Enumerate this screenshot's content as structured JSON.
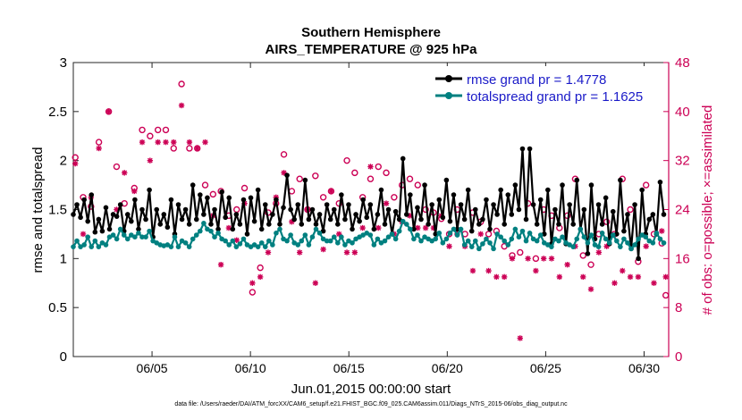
{
  "chart_data": {
    "type": "line",
    "title": "Southern Hemisphere",
    "subtitle": "AIRS_TEMPERATURE @ 925 hPa",
    "xlabel": "Jun.01,2015 00:00:00 start",
    "ylabel": "rmse and totalspread",
    "ylabel_right": "# of obs: o=possible; ×=assimilated",
    "xlim": [
      1,
      31.25
    ],
    "ylim": [
      0,
      3
    ],
    "ylim_right": [
      0,
      48
    ],
    "x_ticks": [
      5,
      10,
      15,
      20,
      25,
      30
    ],
    "x_tick_labels": [
      "06/05",
      "06/10",
      "06/15",
      "06/20",
      "06/25",
      "06/30"
    ],
    "y_ticks": [
      "0",
      "0.5",
      "1",
      "1.5",
      "2",
      "2.5",
      "3"
    ],
    "y_ticks_right": [
      "0",
      "8",
      "16",
      "24",
      "32",
      "40",
      "48"
    ],
    "legend": [
      "rmse grand pr = 1.4778",
      "totalspread grand pr = 1.1625"
    ],
    "legend_position": "top-right",
    "series": [
      {
        "name": "rmse",
        "color": "#000000",
        "axis": "left",
        "values": [
          1.45,
          1.55,
          1.42,
          1.6,
          1.38,
          1.65,
          1.27,
          1.4,
          1.28,
          1.52,
          1.3,
          1.45,
          1.43,
          1.55,
          1.28,
          1.45,
          1.38,
          1.6,
          1.3,
          1.5,
          1.4,
          1.7,
          1.22,
          1.5,
          1.35,
          1.45,
          1.32,
          1.6,
          1.25,
          1.55,
          1.4,
          1.5,
          1.35,
          1.75,
          1.4,
          1.65,
          1.45,
          1.62,
          1.35,
          1.5,
          1.3,
          1.68,
          1.42,
          1.62,
          1.3,
          1.45,
          1.35,
          1.6,
          1.25,
          1.62,
          1.38,
          1.7,
          1.3,
          1.55,
          1.35,
          1.45,
          1.6,
          1.35,
          1.52,
          1.85,
          1.5,
          1.4,
          1.55,
          1.35,
          1.8,
          1.4,
          1.5,
          1.35,
          1.45,
          1.28,
          1.55,
          1.4,
          1.5,
          1.35,
          1.65,
          1.4,
          1.55,
          1.3,
          1.45,
          1.38,
          1.6,
          1.42,
          1.55,
          1.3,
          1.45,
          1.7,
          1.35,
          1.5,
          1.25,
          1.48,
          1.4,
          2.02,
          1.45,
          1.65,
          1.3,
          1.52,
          1.4,
          1.75,
          1.35,
          1.55,
          1.25,
          1.6,
          1.42,
          1.8,
          1.38,
          1.65,
          1.3,
          1.55,
          1.4,
          1.7,
          1.28,
          1.5,
          1.35,
          1.4,
          1.6,
          1.3,
          1.55,
          1.45,
          1.7,
          1.35,
          1.65,
          1.45,
          1.75,
          1.5,
          2.12,
          1.4,
          2.12,
          1.55,
          1.35,
          1.6,
          1.25,
          1.7,
          1.15,
          1.5,
          1.35,
          1.75,
          1.15,
          1.55,
          1.35,
          1.8,
          1.3,
          1.5,
          1.05,
          1.75,
          1.2,
          1.55,
          1.35,
          1.62,
          1.15,
          1.48,
          1.25,
          1.8,
          1.28,
          1.45,
          1.1,
          1.55,
          1.0,
          1.7,
          1.25,
          1.4,
          1.45,
          1.25,
          1.78,
          1.45
        ]
      },
      {
        "name": "totalspread",
        "color": "#008080",
        "axis": "left",
        "values": [
          1.12,
          1.18,
          1.12,
          1.14,
          1.22,
          1.12,
          1.18,
          1.12,
          1.16,
          1.14,
          1.22,
          1.24,
          1.2,
          1.3,
          1.24,
          1.2,
          1.24,
          1.22,
          1.26,
          1.22,
          1.22,
          1.28,
          1.18,
          1.16,
          1.14,
          1.13,
          1.14,
          1.12,
          1.22,
          1.12,
          1.18,
          1.16,
          1.12,
          1.2,
          1.24,
          1.28,
          1.36,
          1.3,
          1.28,
          1.22,
          1.26,
          1.2,
          1.18,
          1.14,
          1.18,
          1.12,
          1.15,
          1.2,
          1.14,
          1.12,
          1.14,
          1.12,
          1.16,
          1.12,
          1.18,
          1.14,
          1.26,
          1.3,
          1.2,
          1.18,
          1.24,
          1.16,
          1.14,
          1.18,
          1.24,
          1.14,
          1.22,
          1.3,
          1.26,
          1.2,
          1.18,
          1.18,
          1.22,
          1.16,
          1.22,
          1.14,
          1.18,
          1.16,
          1.2,
          1.22,
          1.24,
          1.26,
          1.24,
          1.14,
          1.2,
          1.16,
          1.18,
          1.22,
          1.25,
          1.2,
          1.28,
          1.38,
          1.35,
          1.3,
          1.2,
          1.24,
          1.18,
          1.22,
          1.2,
          1.18,
          1.2,
          1.26,
          1.16,
          1.2,
          1.26,
          1.3,
          1.24,
          1.3,
          1.14,
          1.18,
          1.12,
          1.18,
          1.1,
          1.15,
          1.2,
          1.16,
          1.1,
          1.25,
          1.22,
          1.18,
          1.14,
          1.2,
          1.3,
          1.22,
          1.28,
          1.18,
          1.26,
          1.2,
          1.18,
          1.24,
          1.16,
          1.14,
          1.12,
          1.2,
          1.18,
          1.22,
          1.16,
          1.14,
          1.12,
          1.2,
          1.3,
          1.22,
          1.16,
          1.24,
          1.14,
          1.12,
          1.26,
          1.2,
          1.16,
          1.24,
          1.18,
          1.12,
          1.2,
          1.16,
          1.1,
          1.14,
          1.2,
          1.24,
          1.22,
          1.18,
          1.16,
          1.26,
          1.2,
          1.16
        ]
      },
      {
        "name": "obs possible",
        "color": "#cc0055",
        "marker": "o",
        "axis": "right",
        "x": [
          1.1,
          1.5,
          1.9,
          2.3,
          2.8,
          3.2,
          3.6,
          4.1,
          4.5,
          4.9,
          5.3,
          5.7,
          6.1,
          6.5,
          6.9,
          7.3,
          7.7,
          8.1,
          8.5,
          8.9,
          9.3,
          9.7,
          10.1,
          10.5,
          10.9,
          11.3,
          11.7,
          12.1,
          12.5,
          12.9,
          13.3,
          13.7,
          14.1,
          14.5,
          14.9,
          15.3,
          15.7,
          16.1,
          16.5,
          16.9,
          17.3,
          17.7,
          18.1,
          18.5,
          18.9,
          19.3,
          19.7,
          20.1,
          20.5,
          20.9,
          21.3,
          21.7,
          22.1,
          22.5,
          22.9,
          23.3,
          23.7,
          24.1,
          24.5,
          24.9,
          25.3,
          25.7,
          26.1,
          26.5,
          26.9,
          27.3,
          27.7,
          28.1,
          28.5,
          28.9,
          29.3,
          29.7,
          30.1,
          30.5,
          30.9,
          31.1
        ],
        "values": [
          32.5,
          26,
          24.5,
          35,
          40,
          31,
          25,
          27.5,
          37,
          36,
          37,
          37,
          34,
          44.5,
          34,
          34,
          28,
          26.5,
          27,
          23,
          24,
          27.5,
          10.5,
          14.5,
          23.5,
          25,
          33,
          27,
          29,
          24,
          29.5,
          26,
          27,
          25,
          32,
          30,
          26,
          29,
          31,
          30,
          26,
          28,
          29,
          28,
          24,
          23.5,
          22.5,
          20,
          24,
          20,
          23.5,
          22,
          20,
          20.5,
          18,
          16.5,
          17,
          25,
          16,
          24,
          23,
          21,
          23,
          29,
          16.5,
          15,
          20,
          22,
          20,
          29,
          24,
          15.5,
          28,
          20,
          18.5,
          10
        ]
      },
      {
        "name": "obs assimilated",
        "color": "#cc0055",
        "marker": "x",
        "axis": "right",
        "x": [
          1.1,
          1.5,
          1.9,
          2.3,
          2.8,
          3.2,
          3.6,
          4.1,
          4.5,
          4.9,
          5.3,
          5.7,
          6.1,
          6.5,
          6.9,
          7.3,
          7.7,
          8.1,
          8.5,
          8.9,
          9.3,
          9.7,
          10.1,
          10.5,
          10.9,
          11.3,
          11.7,
          12.1,
          12.5,
          12.9,
          13.3,
          13.7,
          14.1,
          14.5,
          14.9,
          15.3,
          15.7,
          16.1,
          16.5,
          16.9,
          17.3,
          17.7,
          18.1,
          18.5,
          18.9,
          19.3,
          19.7,
          20.1,
          20.5,
          20.9,
          21.3,
          21.7,
          22.1,
          22.5,
          22.9,
          23.3,
          23.7,
          24.1,
          24.5,
          24.9,
          25.3,
          25.7,
          26.1,
          26.5,
          26.9,
          27.3,
          27.7,
          28.1,
          28.5,
          28.9,
          29.3,
          29.7,
          30.1,
          30.5,
          30.9,
          31.1
        ],
        "values": [
          31.5,
          20,
          26,
          34,
          40,
          24,
          30,
          27,
          35,
          32,
          35,
          35,
          35,
          41,
          35,
          34,
          35,
          23,
          15,
          21,
          19,
          25,
          12,
          13,
          17,
          26,
          30,
          22,
          17,
          24,
          12,
          17.5,
          27,
          20,
          17,
          17,
          21,
          31,
          21,
          25,
          20,
          22,
          23,
          21,
          21,
          21,
          23,
          18,
          20,
          18,
          14,
          20,
          14,
          13,
          13,
          16,
          3,
          16,
          14,
          16,
          16,
          13,
          15,
          18,
          13,
          11,
          17,
          18,
          12,
          14,
          13,
          13,
          18,
          12,
          20.5,
          13
        ]
      }
    ]
  },
  "footer": "data file: /Users/raeder/DAI/ATM_forcXX/CAM6_setup/f.e21.FHIST_BGC.f09_025.CAM6assim.011/Diags_NTrS_2015-06/obs_diag_output.nc"
}
